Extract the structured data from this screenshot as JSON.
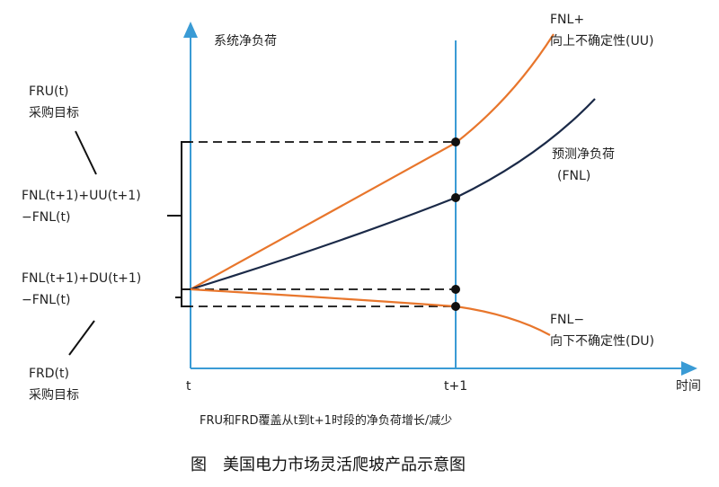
{
  "colors": {
    "axis": "#3a9bd5",
    "upper": "#e8762c",
    "forecast": "#1b2a48",
    "lower": "#e8762c",
    "bracket": "#111111"
  },
  "axes": {
    "y_label": "系统净负荷",
    "x_label": "时间",
    "x_ticks": [
      "t",
      "t+1"
    ]
  },
  "curves": {
    "upper": {
      "line1": "FNL+",
      "line2": "向上不确定性(UU)"
    },
    "forecast": {
      "line1": "预测净负荷",
      "line2": "(FNL)"
    },
    "lower": {
      "line1": "FNL−",
      "line2": "向下不确定性(DU)"
    }
  },
  "left": {
    "fru": {
      "line1": "FRU(t)",
      "line2": "采购目标"
    },
    "up_expr": {
      "line1": "FNL(t+1)+UU(t+1)",
      "line2": "−FNL(t)"
    },
    "down_expr": {
      "line1": "FNL(t+1)+DU(t+1)",
      "line2": "−FNL(t)"
    },
    "frd": {
      "line1": "FRD(t)",
      "line2": "采购目标"
    }
  },
  "caption": "FRU和FRD覆盖从t到t+1时段的净负荷增长/减少",
  "figure_title": "图　美国电力市场灵活爬坡产品示意图"
}
